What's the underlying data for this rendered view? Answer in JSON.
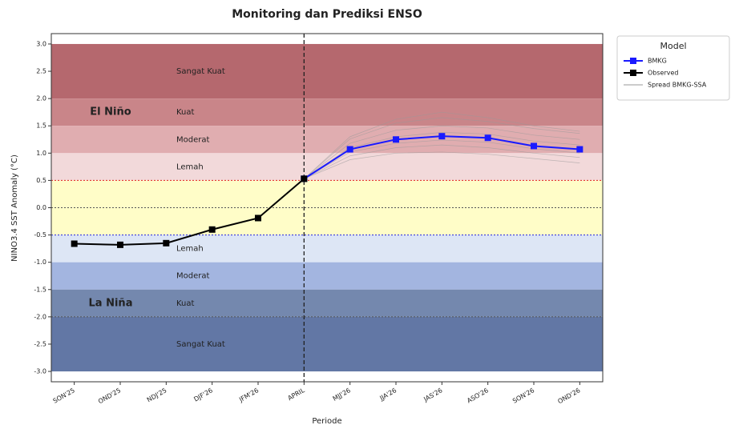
{
  "chart_data": {
    "type": "line",
    "title": "Monitoring dan Prediksi ENSO",
    "xlabel": "Periode",
    "ylabel": "NINO3.4 SST Anomaly (°C)",
    "categories": [
      "SON'25",
      "OND'25",
      "NDJ'25",
      "DJF'26",
      "JFM'26",
      "APRIL",
      "MJJ'26",
      "JJA'26",
      "JAS'26",
      "ASO'26",
      "SON'26",
      "OND'26"
    ],
    "series": [
      {
        "name": "BMKG",
        "color": "#1a1aff",
        "values": [
          null,
          null,
          null,
          null,
          null,
          0.53,
          1.07,
          1.25,
          1.31,
          1.28,
          1.13,
          1.07
        ]
      },
      {
        "name": "Observed",
        "color": "#000000",
        "values": [
          -0.66,
          -0.68,
          -0.65,
          -0.4,
          -0.19,
          0.53,
          null,
          null,
          null,
          null,
          null,
          null
        ]
      }
    ],
    "spread": {
      "name": "Spread BMKG-SSA",
      "color": "#999999",
      "members": [
        [
          null,
          null,
          null,
          null,
          null,
          0.53,
          0.88,
          1.0,
          1.02,
          0.98,
          0.9,
          0.82
        ],
        [
          null,
          null,
          null,
          null,
          null,
          0.53,
          0.95,
          1.1,
          1.15,
          1.1,
          1.0,
          0.92
        ],
        [
          null,
          null,
          null,
          null,
          null,
          0.53,
          1.02,
          1.18,
          1.24,
          1.2,
          1.08,
          1.0
        ],
        [
          null,
          null,
          null,
          null,
          null,
          0.53,
          1.1,
          1.3,
          1.38,
          1.35,
          1.22,
          1.15
        ],
        [
          null,
          null,
          null,
          null,
          null,
          0.53,
          1.18,
          1.42,
          1.5,
          1.46,
          1.33,
          1.25
        ],
        [
          null,
          null,
          null,
          null,
          null,
          0.53,
          1.26,
          1.55,
          1.65,
          1.58,
          1.45,
          1.36
        ],
        [
          null,
          null,
          null,
          null,
          null,
          0.53,
          1.3,
          1.62,
          1.75,
          1.65,
          1.5,
          1.4
        ]
      ]
    },
    "bands": [
      {
        "range": [
          2,
          3
        ],
        "label": "Sangat Kuat",
        "color": "#b5686e"
      },
      {
        "range": [
          1.5,
          2
        ],
        "label": "Kuat",
        "color": "#c98589"
      },
      {
        "range": [
          1,
          1.5
        ],
        "label": "Moderat",
        "color": "#e0adb0"
      },
      {
        "range": [
          0.5,
          1
        ],
        "label": "Lemah",
        "color": "#f2d9da"
      },
      {
        "range": [
          -0.5,
          0.5
        ],
        "color": "#fffdc8"
      },
      {
        "range": [
          -1,
          -0.5
        ],
        "label": "Lemah",
        "color": "#dde6f5"
      },
      {
        "range": [
          -1.5,
          -1
        ],
        "label": "Moderat",
        "color": "#a3b5e0"
      },
      {
        "range": [
          -2,
          -1.5
        ],
        "label": "Kuat",
        "color": "#7488ae"
      },
      {
        "range": [
          -3,
          -2
        ],
        "label": "Sangat Kuat",
        "color": "#6277a5"
      }
    ],
    "regions": [
      {
        "label": "El Niño",
        "range": [
          0.5,
          3
        ]
      },
      {
        "label": "La Niña",
        "range": [
          -3,
          -0.5
        ]
      }
    ],
    "reference_lines": [
      {
        "value": 0.5,
        "color": "#e02020"
      },
      {
        "value": 0,
        "color": "#555555"
      },
      {
        "value": -0.5,
        "color": "#2020e0"
      },
      {
        "value": -2,
        "color": "#555555"
      }
    ],
    "divider_index": 5,
    "legend_title": "Model",
    "legend": "upper right outside",
    "ylim": [
      -3.19,
      3.19
    ],
    "yticks": [
      {
        "value": 3,
        "label": "3.0"
      },
      2.5,
      {
        "value": 2,
        "label": "2.0"
      },
      1.5,
      {
        "value": 1,
        "label": "1.0"
      },
      0.5,
      {
        "value": 0,
        "label": "0.0"
      },
      -0.5,
      {
        "value": -1,
        "label": "-1.0"
      },
      -1.5,
      {
        "value": -2,
        "label": "-2.0"
      },
      -2.5,
      {
        "value": -3,
        "label": "-3.0"
      }
    ]
  }
}
